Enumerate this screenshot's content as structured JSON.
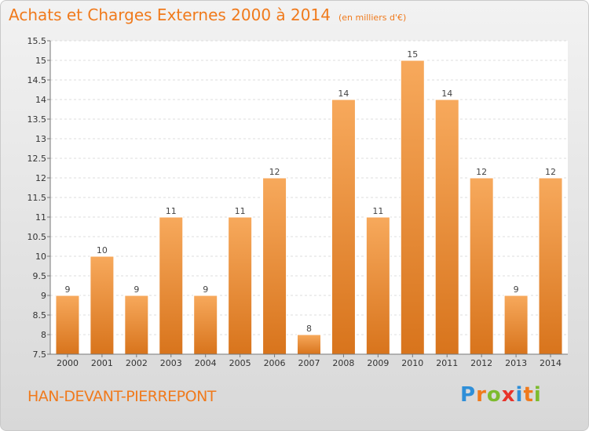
{
  "title": "Achats et Charges Externes 2000 à 2014",
  "unit": "(en milliers d'€)",
  "commune": "HAN-DEVANT-PIERREPONT",
  "brand": {
    "text": "Proxiti",
    "letters": [
      "P",
      "r",
      "o",
      "x",
      "i",
      "t",
      "i"
    ],
    "colors": [
      "#2f8fd8",
      "#f07a1c",
      "#7dbb2e",
      "#e8332a",
      "#2f8fd8",
      "#f07a1c",
      "#7dbb2e"
    ]
  },
  "colors": {
    "accent": "#f07a1c",
    "bar_light": "#f7a95c",
    "bar_dark": "#d8741c"
  },
  "chart_data": {
    "type": "bar",
    "title": "Achats et Charges Externes 2000 à 2014",
    "subtitle": "(en milliers d'€)",
    "xlabel": "",
    "ylabel": "",
    "categories": [
      "2000",
      "2001",
      "2002",
      "2003",
      "2004",
      "2005",
      "2006",
      "2007",
      "2008",
      "2009",
      "2010",
      "2011",
      "2012",
      "2013",
      "2014"
    ],
    "values": [
      9,
      10,
      9,
      11,
      9,
      11,
      12,
      8,
      14,
      11,
      15,
      14,
      12,
      9,
      12
    ],
    "value_labels": [
      "9",
      "10",
      "9",
      "11",
      "9",
      "11",
      "12",
      "8",
      "14",
      "11",
      "15",
      "14",
      "12",
      "9",
      "12"
    ],
    "ylim": [
      7.5,
      15.5
    ],
    "yticks": [
      7.5,
      8,
      8.5,
      9,
      9.5,
      10,
      10.5,
      11,
      11.5,
      12,
      12.5,
      13,
      13.5,
      14,
      14.5,
      15,
      15.5
    ],
    "ytick_labels": [
      "7.5",
      "8",
      "8.5",
      "9",
      "9.5",
      "10",
      "10.5",
      "11",
      "11.5",
      "12",
      "12.5",
      "13",
      "13.5",
      "14",
      "14.5",
      "15",
      "15.5"
    ],
    "grid": true
  }
}
